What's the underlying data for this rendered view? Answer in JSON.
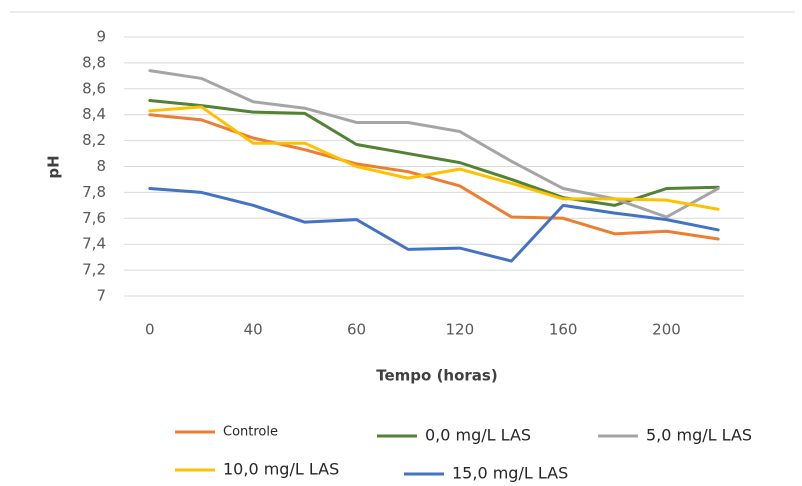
{
  "chart_data": {
    "type": "line",
    "x_label": "Tempo (horas)",
    "y_label": "pH",
    "categories": [
      "0",
      null,
      "40",
      null,
      "60",
      null,
      "120",
      null,
      "160",
      null,
      "200",
      null
    ],
    "ylim": [
      7,
      9
    ],
    "yticks": [
      7,
      {
        "value": 7.2,
        "label": "7,2"
      },
      {
        "value": 7.4,
        "label": "7,4"
      },
      {
        "value": 7.6,
        "label": "7,6"
      },
      {
        "value": 7.8,
        "label": "7,8"
      },
      8,
      {
        "value": 8.2,
        "label": "8,2"
      },
      {
        "value": 8.4,
        "label": "8,4"
      },
      {
        "value": 8.6,
        "label": "8,6"
      },
      {
        "value": 8.8,
        "label": "8,8"
      },
      9
    ],
    "grid": true,
    "legend": "bottom",
    "series": [
      {
        "name": "Controle",
        "color": "#ed7d31",
        "values": [
          8.4,
          8.36,
          8.22,
          8.13,
          8.02,
          7.96,
          7.85,
          7.61,
          7.6,
          7.48,
          7.5,
          7.44
        ]
      },
      {
        "name": "0,0 mg/L LAS",
        "color": "#548235",
        "values": [
          8.51,
          8.47,
          8.42,
          8.41,
          8.17,
          8.1,
          8.03,
          7.9,
          7.76,
          7.7,
          7.83,
          7.84
        ]
      },
      {
        "name": "5,0 mg/L LAS",
        "color": "#a5a5a5",
        "values": [
          8.74,
          8.68,
          8.5,
          8.45,
          8.34,
          8.34,
          8.27,
          8.04,
          7.83,
          7.75,
          7.61,
          7.83
        ]
      },
      {
        "name": "10,0 mg/L LAS",
        "color": "#ffc000",
        "values": [
          8.43,
          8.46,
          8.18,
          8.18,
          8.0,
          7.91,
          7.98,
          7.87,
          7.75,
          7.75,
          7.74,
          7.67
        ]
      },
      {
        "name": "15,0 mg/L LAS",
        "color": "#4472c4",
        "values": [
          7.83,
          7.8,
          7.7,
          7.57,
          7.59,
          7.36,
          7.37,
          7.27,
          7.7,
          7.64,
          7.59,
          7.51
        ]
      }
    ]
  }
}
